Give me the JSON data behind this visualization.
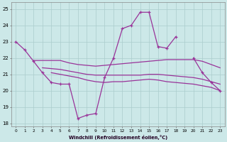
{
  "background_color": "#cce8e8",
  "grid_color": "#aacccc",
  "line_color": "#993399",
  "hours": [
    0,
    1,
    2,
    3,
    4,
    5,
    6,
    7,
    8,
    9,
    10,
    11,
    12,
    13,
    14,
    15,
    16,
    17,
    18,
    19,
    20,
    21,
    22,
    23
  ],
  "windchill": [
    23.0,
    22.5,
    21.8,
    21.1,
    20.5,
    20.4,
    20.4,
    18.3,
    18.5,
    18.6,
    20.8,
    22.0,
    23.8,
    24.0,
    24.8,
    24.8,
    22.7,
    22.6,
    23.3,
    null,
    22.0,
    21.1,
    20.5,
    20.0
  ],
  "flat1": [
    null,
    null,
    21.85,
    21.85,
    21.85,
    21.85,
    21.7,
    21.6,
    21.55,
    21.5,
    21.55,
    21.6,
    21.65,
    21.7,
    21.75,
    21.8,
    21.85,
    21.9,
    21.9,
    21.9,
    21.9,
    21.8,
    21.6,
    21.4
  ],
  "flat2": [
    null,
    null,
    null,
    21.4,
    21.35,
    21.3,
    21.2,
    21.1,
    21.0,
    20.95,
    20.95,
    20.95,
    20.95,
    20.95,
    20.95,
    21.0,
    21.0,
    20.95,
    20.9,
    20.85,
    20.8,
    20.7,
    20.55,
    20.4
  ],
  "flat3": [
    null,
    null,
    null,
    null,
    21.1,
    21.0,
    20.9,
    20.8,
    20.65,
    20.55,
    20.5,
    20.55,
    20.55,
    20.6,
    20.65,
    20.7,
    20.65,
    20.55,
    20.5,
    20.45,
    20.4,
    20.3,
    20.2,
    20.0
  ],
  "ylim": [
    17.8,
    25.4
  ],
  "xlim": [
    -0.5,
    23.5
  ],
  "xlabel": "Windchill (Refroidissement éolien,°C)",
  "yticks": [
    18,
    19,
    20,
    21,
    22,
    23,
    24,
    25
  ],
  "xticks": [
    0,
    1,
    2,
    3,
    4,
    5,
    6,
    7,
    8,
    9,
    10,
    11,
    12,
    13,
    14,
    15,
    16,
    17,
    18,
    19,
    20,
    21,
    22,
    23
  ]
}
